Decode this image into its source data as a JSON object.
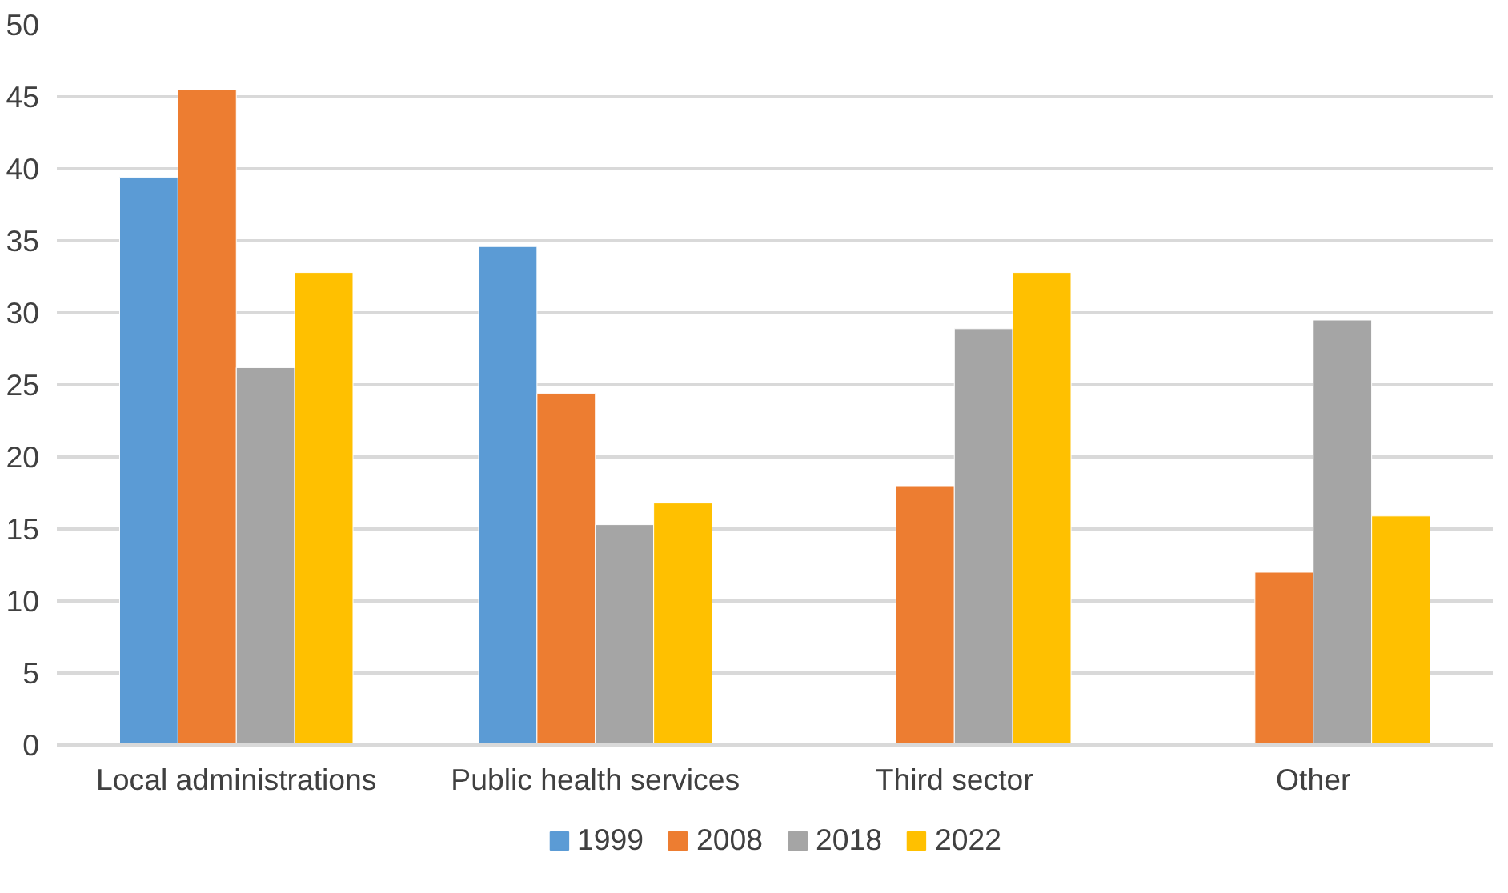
{
  "chart_data": {
    "type": "bar",
    "categories": [
      "Local administrations",
      "Public health services",
      "Third sector",
      "Other"
    ],
    "series": [
      {
        "name": "1999",
        "color": "#5b9bd5",
        "values": [
          39.4,
          34.6,
          null,
          null
        ]
      },
      {
        "name": "2008",
        "color": "#ed7d31",
        "values": [
          45.5,
          24.4,
          18.0,
          12.0
        ]
      },
      {
        "name": "2018",
        "color": "#a5a5a5",
        "values": [
          26.2,
          15.3,
          28.9,
          29.5
        ]
      },
      {
        "name": "2022",
        "color": "#ffc000",
        "values": [
          32.8,
          16.8,
          32.8,
          15.9
        ]
      }
    ],
    "ylim": [
      0,
      50
    ],
    "yticks": [
      0,
      5,
      10,
      15,
      20,
      25,
      30,
      35,
      40,
      45,
      50
    ],
    "grid": "y",
    "legend": "bottom"
  }
}
